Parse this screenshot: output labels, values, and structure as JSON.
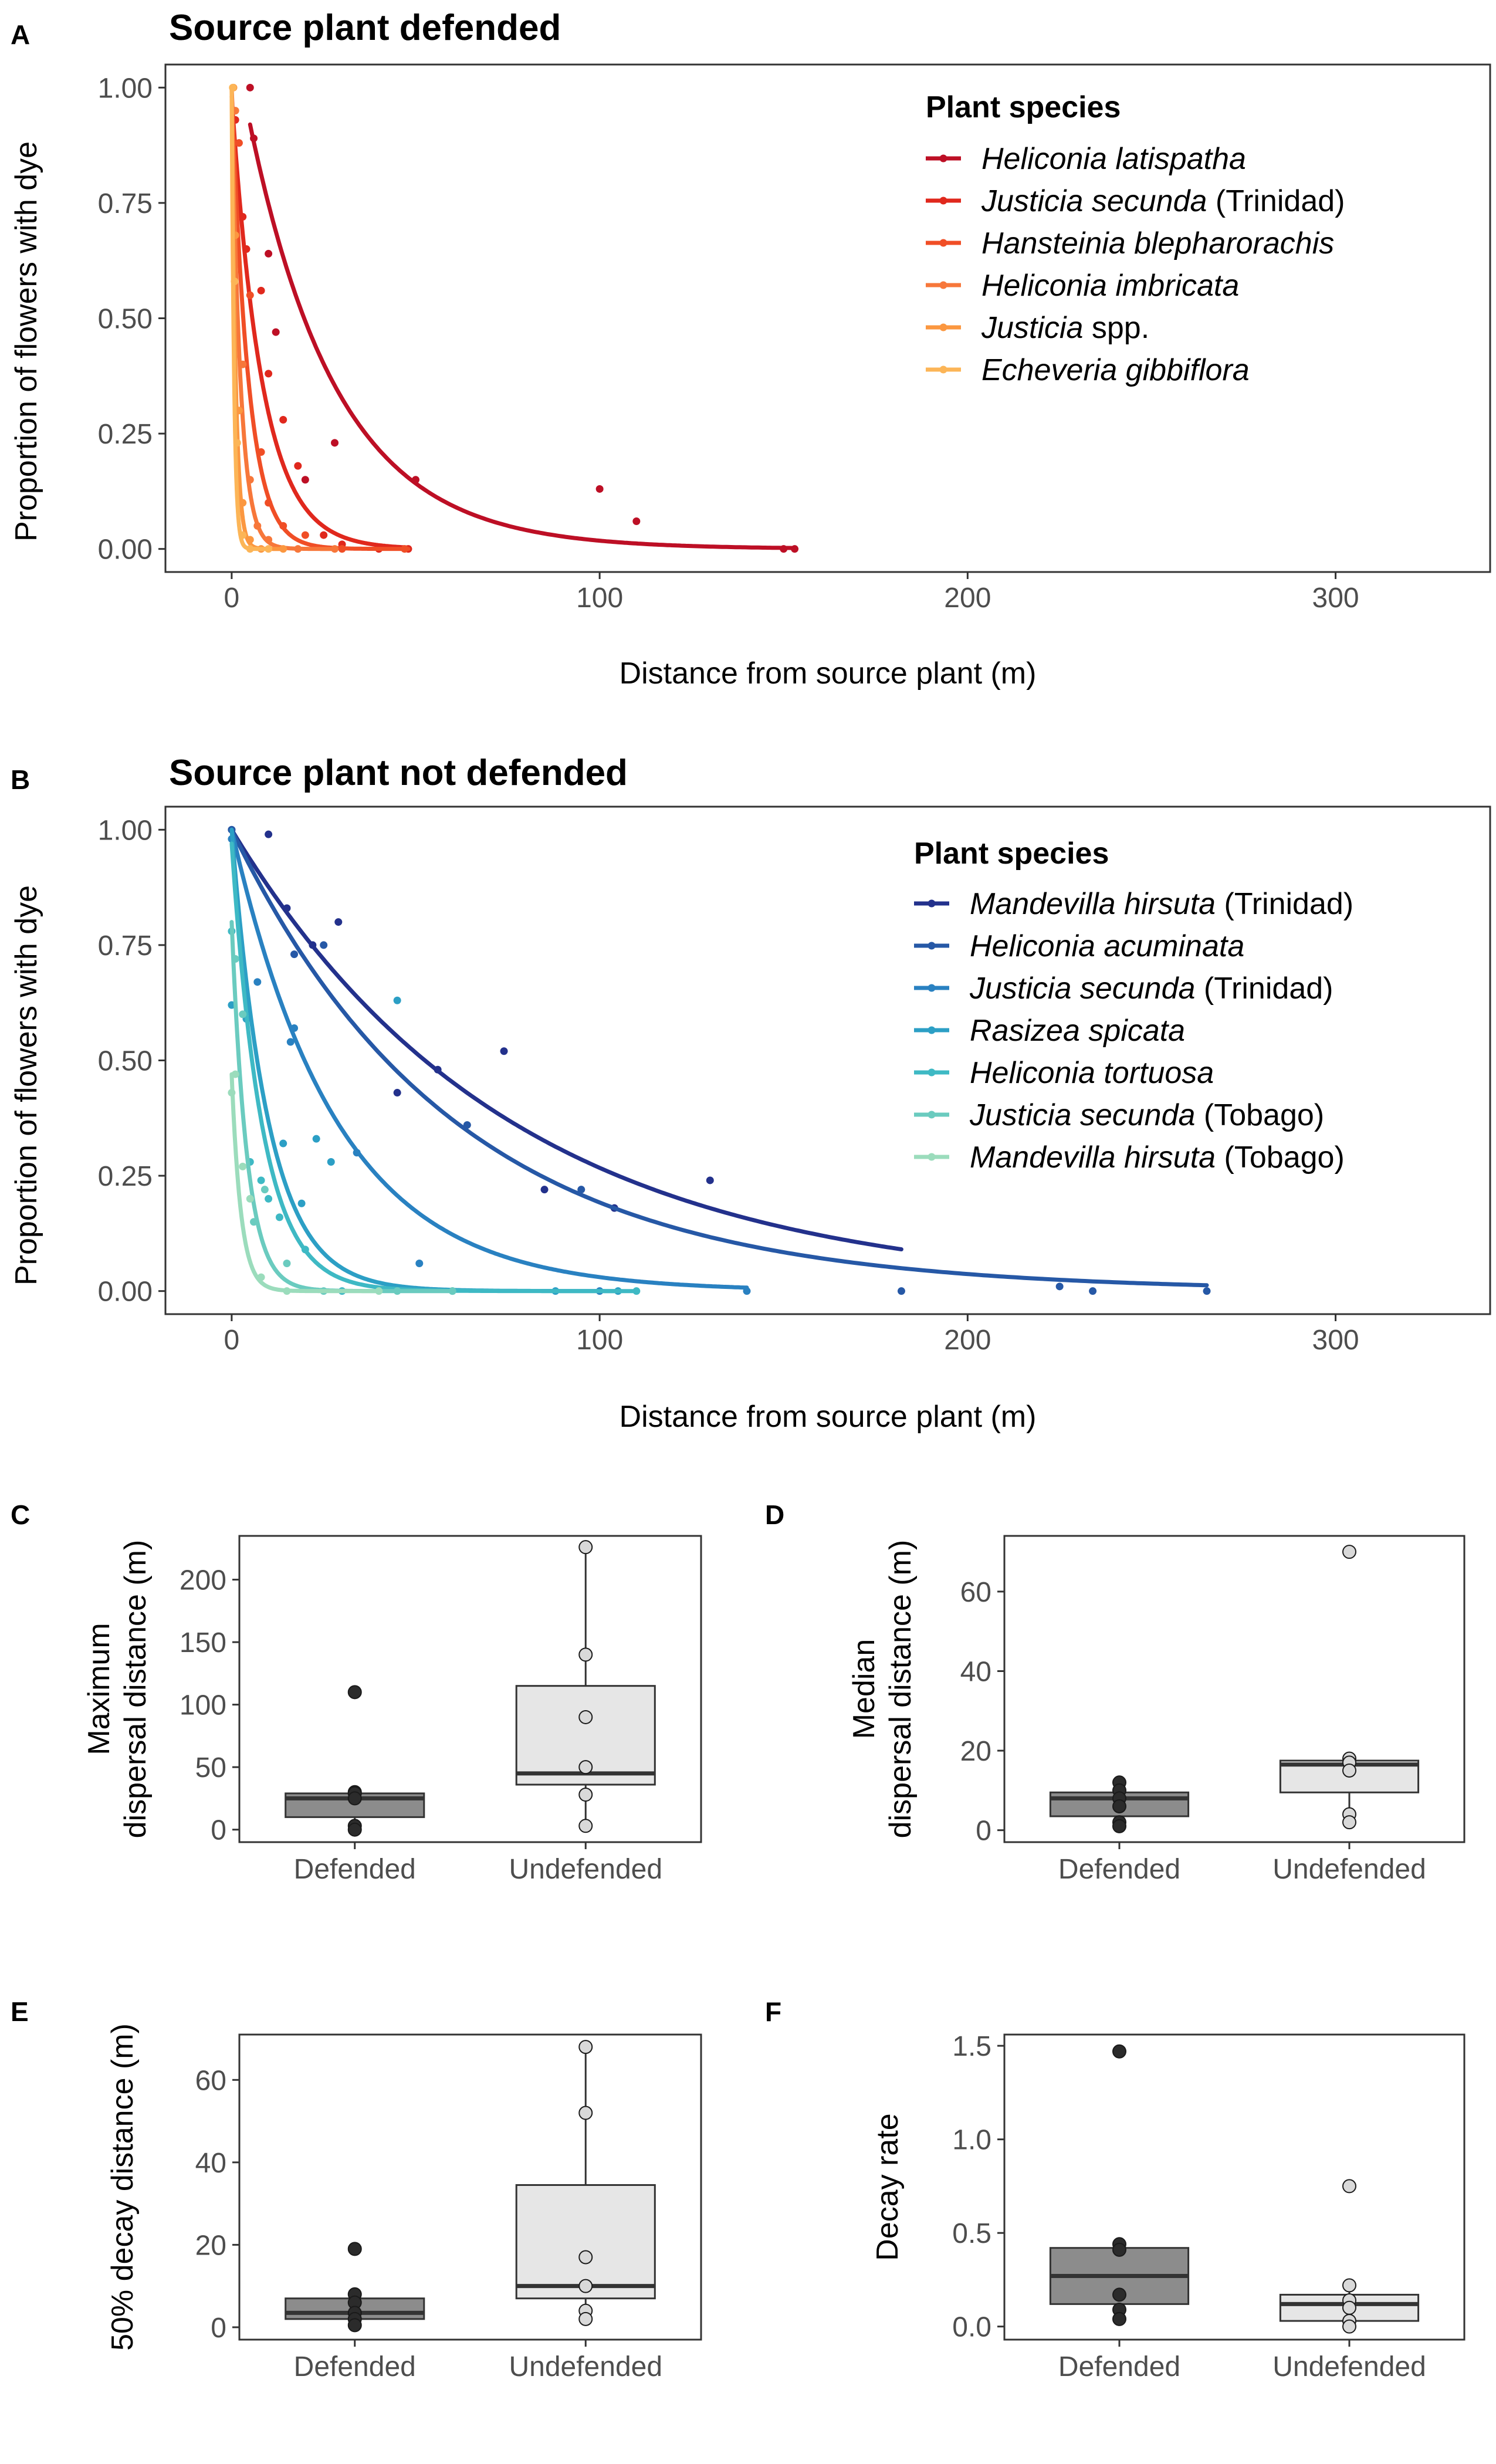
{
  "colors": {
    "defended_box": "#8c8c8c",
    "undefended_box": "#e6e6e6",
    "defended_point": "#2b2b2b",
    "undefended_point": "#d9d9d9"
  },
  "chart_data": [
    {
      "panel": "A",
      "type": "scatter",
      "title": "Source plant defended",
      "xlabel": "Distance from source plant (m)",
      "ylabel": "Proportion of flowers with dye",
      "xlim": [
        -18,
        342
      ],
      "ylim": [
        -0.05,
        1.05
      ],
      "xticks": [
        0,
        100,
        200,
        300
      ],
      "xtick_labels": [
        "0",
        "100",
        "200",
        "300"
      ],
      "yticks": [
        0,
        0.25,
        0.5,
        0.75,
        1.0
      ],
      "ytick_labels": [
        "0.00",
        "0.25",
        "0.50",
        "0.75",
        "1.00"
      ],
      "grid": false,
      "legend_position": "top-right",
      "legend_title": "Plant species",
      "series": [
        {
          "name_italic": "Heliconia latispatha",
          "name_plain": "",
          "color": "#bd0f25",
          "fit": {
            "a": 0.92,
            "k": 0.0415,
            "x0": 5,
            "x1": 153
          },
          "points": [
            [
              5,
              1.0
            ],
            [
              6,
              0.89
            ],
            [
              10,
              0.64
            ],
            [
              12,
              0.47
            ],
            [
              20,
              0.15
            ],
            [
              28,
              0.23
            ],
            [
              50,
              0.15
            ],
            [
              100,
              0.13
            ],
            [
              110,
              0.06
            ],
            [
              150,
              0.0
            ],
            [
              153,
              0.0
            ]
          ]
        },
        {
          "name_italic": "Justicia secunda",
          "name_plain": " (Trinidad)",
          "color": "#e0281d",
          "fit": {
            "a": 0.98,
            "k": 0.12,
            "x0": 0,
            "x1": 48
          },
          "points": [
            [
              1,
              0.93
            ],
            [
              3,
              0.72
            ],
            [
              4,
              0.65
            ],
            [
              8,
              0.56
            ],
            [
              10,
              0.38
            ],
            [
              14,
              0.28
            ],
            [
              18,
              0.18
            ],
            [
              25,
              0.03
            ],
            [
              30,
              0.01
            ],
            [
              40,
              0.0
            ],
            [
              48,
              0.0
            ]
          ]
        },
        {
          "name_italic": "Hansteinia blepharorachis",
          "name_plain": "",
          "color": "#f04e26",
          "fit": {
            "a": 1.0,
            "k": 0.22,
            "x0": 0,
            "x1": 48
          },
          "points": [
            [
              2,
              0.88
            ],
            [
              5,
              0.55
            ],
            [
              8,
              0.21
            ],
            [
              10,
              0.1
            ],
            [
              14,
              0.05
            ],
            [
              20,
              0.03
            ],
            [
              30,
              0.0
            ],
            [
              47,
              0.0
            ]
          ]
        },
        {
          "name_italic": "Heliconia imbricata",
          "name_plain": "",
          "color": "#f7773a",
          "fit": {
            "a": 1.0,
            "k": 0.42,
            "x0": 0,
            "x1": 28
          },
          "points": [
            [
              1,
              0.95
            ],
            [
              3,
              0.4
            ],
            [
              5,
              0.15
            ],
            [
              7,
              0.05
            ],
            [
              10,
              0.02
            ],
            [
              18,
              0.0
            ],
            [
              28,
              0.0
            ]
          ]
        },
        {
          "name_italic": "Justicia",
          "name_plain": " spp.",
          "color": "#fb9740",
          "fit": {
            "a": 1.0,
            "k": 0.9,
            "x0": 0,
            "x1": 14
          },
          "points": [
            [
              0.5,
              1.0
            ],
            [
              1,
              0.68
            ],
            [
              2,
              0.3
            ],
            [
              3,
              0.1
            ],
            [
              5,
              0.02
            ],
            [
              8,
              0.0
            ],
            [
              14,
              0.0
            ]
          ]
        },
        {
          "name_italic": "Echeveria gibbiflora",
          "name_plain": "",
          "color": "#fcb557",
          "fit": {
            "a": 1.0,
            "k": 1.48,
            "x0": 0,
            "x1": 10
          },
          "points": [
            [
              0.3,
              1.0
            ],
            [
              0.8,
              0.58
            ],
            [
              1.5,
              0.23
            ],
            [
              3,
              0.03
            ],
            [
              5,
              0.0
            ],
            [
              10,
              0.0
            ]
          ]
        }
      ]
    },
    {
      "panel": "B",
      "type": "scatter",
      "title": "Source plant not defended",
      "xlabel": "Distance from source plant (m)",
      "ylabel": "Proportion of flowers with dye",
      "xlim": [
        -18,
        342
      ],
      "ylim": [
        -0.05,
        1.05
      ],
      "xticks": [
        0,
        100,
        200,
        300
      ],
      "xtick_labels": [
        "0",
        "100",
        "200",
        "300"
      ],
      "yticks": [
        0,
        0.25,
        0.5,
        0.75,
        1.0
      ],
      "ytick_labels": [
        "0.00",
        "0.25",
        "0.50",
        "0.75",
        "1.00"
      ],
      "grid": false,
      "legend_position": "top-right",
      "legend_title": "Plant species",
      "series": [
        {
          "name_italic": "Mandevilla hirsuta",
          "name_plain": " (Trinidad)",
          "color": "#23318c",
          "fit": {
            "a": 1.0,
            "k": 0.0132,
            "x0": 0,
            "x1": 182
          },
          "points": [
            [
              0,
              1.0
            ],
            [
              10,
              0.99
            ],
            [
              15,
              0.83
            ],
            [
              22,
              0.75
            ],
            [
              29,
              0.8
            ],
            [
              45,
              0.43
            ],
            [
              56,
              0.48
            ],
            [
              74,
              0.52
            ],
            [
              85,
              0.22
            ],
            [
              104,
              0.18
            ],
            [
              130,
              0.24
            ]
          ]
        },
        {
          "name_italic": "Heliconia acuminata",
          "name_plain": "",
          "color": "#2658a6",
          "fit": {
            "a": 1.0,
            "k": 0.0165,
            "x0": 0,
            "x1": 265
          },
          "points": [
            [
              0,
              1.0
            ],
            [
              17,
              0.73
            ],
            [
              25,
              0.75
            ],
            [
              64,
              0.36
            ],
            [
              95,
              0.22
            ],
            [
              182,
              0.0
            ],
            [
              225,
              0.01
            ],
            [
              234,
              0.0
            ],
            [
              265,
              0.0
            ]
          ]
        },
        {
          "name_italic": "Justicia secunda",
          "name_plain": " (Trinidad)",
          "color": "#2981c1",
          "fit": {
            "a": 1.0,
            "k": 0.035,
            "x0": 0,
            "x1": 140
          },
          "points": [
            [
              0,
              0.98
            ],
            [
              7,
              0.67
            ],
            [
              16,
              0.54
            ],
            [
              17,
              0.57
            ],
            [
              34,
              0.3
            ],
            [
              51,
              0.06
            ],
            [
              100,
              0.0
            ],
            [
              140,
              0.0
            ]
          ]
        },
        {
          "name_italic": "Rasizea spicata",
          "name_plain": "",
          "color": "#2c9fc5",
          "fit": {
            "a": 1.0,
            "k": 0.1,
            "x0": 0,
            "x1": 105
          },
          "points": [
            [
              0,
              0.62
            ],
            [
              4,
              0.59
            ],
            [
              14,
              0.32
            ],
            [
              19,
              0.19
            ],
            [
              23,
              0.33
            ],
            [
              27,
              0.28
            ],
            [
              45,
              0.63
            ],
            [
              88,
              0.0
            ],
            [
              105,
              0.0
            ]
          ]
        },
        {
          "name_italic": "Heliconia tortuosa",
          "name_plain": "",
          "color": "#3eb9c4",
          "fit": {
            "a": 0.97,
            "k": 0.12,
            "x0": 0,
            "x1": 110
          },
          "points": [
            [
              0,
              0.78
            ],
            [
              5,
              0.28
            ],
            [
              8,
              0.24
            ],
            [
              10,
              0.2
            ],
            [
              13,
              0.16
            ],
            [
              20,
              0.09
            ],
            [
              30,
              0.0
            ],
            [
              60,
              0.0
            ],
            [
              110,
              0.0
            ]
          ]
        },
        {
          "name_italic": "Justicia secunda",
          "name_plain": " (Tobago)",
          "color": "#6acbbf",
          "fit": {
            "a": 0.8,
            "k": 0.24,
            "x0": 0,
            "x1": 60
          },
          "points": [
            [
              1,
              0.72
            ],
            [
              3,
              0.6
            ],
            [
              6,
              0.15
            ],
            [
              9,
              0.22
            ],
            [
              15,
              0.06
            ],
            [
              25,
              0.0
            ],
            [
              45,
              0.0
            ],
            [
              60,
              0.0
            ]
          ]
        },
        {
          "name_italic": "Mandevilla hirsuta",
          "name_plain": " (Tobago)",
          "color": "#9bdcbc",
          "fit": {
            "a": 0.47,
            "k": 0.4,
            "x0": 0,
            "x1": 40
          },
          "points": [
            [
              0,
              0.43
            ],
            [
              1,
              0.47
            ],
            [
              3,
              0.27
            ],
            [
              5,
              0.2
            ],
            [
              8,
              0.03
            ],
            [
              15,
              0.0
            ],
            [
              40,
              0.0
            ]
          ]
        }
      ]
    },
    {
      "panel": "C",
      "type": "box",
      "ylabel_lines": [
        "Maximum",
        "dispersal distance (m)"
      ],
      "categories": [
        "Defended",
        "Undefended"
      ],
      "ylim": [
        -10,
        235
      ],
      "yticks": [
        0,
        50,
        100,
        150,
        200
      ],
      "ytick_labels": [
        "0",
        "50",
        "100",
        "150",
        "200"
      ],
      "boxes": [
        {
          "q1": 10,
          "median": 25,
          "q3": 29,
          "lo": 0,
          "hi": 30,
          "points": [
            110,
            30,
            29,
            25,
            3,
            0
          ]
        },
        {
          "q1": 36,
          "median": 45,
          "q3": 115,
          "lo": 3,
          "hi": 226,
          "points": [
            226,
            140,
            90,
            50,
            28,
            3
          ]
        }
      ]
    },
    {
      "panel": "D",
      "type": "box",
      "ylabel_lines": [
        "Median",
        "dispersal distance (m)"
      ],
      "categories": [
        "Defended",
        "Undefended"
      ],
      "ylim": [
        -3,
        74
      ],
      "yticks": [
        0,
        20,
        40,
        60
      ],
      "ytick_labels": [
        "0",
        "20",
        "40",
        "60"
      ],
      "boxes": [
        {
          "q1": 3.5,
          "median": 8,
          "q3": 9.5,
          "lo": 1,
          "hi": 12,
          "points": [
            12,
            10,
            8,
            6,
            2,
            1
          ]
        },
        {
          "q1": 9.5,
          "median": 16.5,
          "q3": 17.5,
          "lo": 2,
          "hi": 18,
          "points": [
            70,
            18,
            17,
            15,
            4,
            2
          ]
        }
      ]
    },
    {
      "panel": "E",
      "type": "box",
      "ylabel_lines": [
        "50% decay distance (m)"
      ],
      "categories": [
        "Defended",
        "Undefended"
      ],
      "ylim": [
        -3,
        71
      ],
      "yticks": [
        0,
        20,
        40,
        60
      ],
      "ytick_labels": [
        "0",
        "20",
        "40",
        "60"
      ],
      "boxes": [
        {
          "q1": 2,
          "median": 3.5,
          "q3": 7,
          "lo": 0.5,
          "hi": 8,
          "points": [
            19,
            8,
            6,
            3.5,
            2,
            0.5
          ]
        },
        {
          "q1": 7,
          "median": 10,
          "q3": 34.5,
          "lo": 2,
          "hi": 68,
          "points": [
            68,
            52,
            17,
            10,
            4,
            2
          ]
        }
      ]
    },
    {
      "panel": "F",
      "type": "box",
      "ylabel_lines": [
        "Decay rate"
      ],
      "categories": [
        "Defended",
        "Undefended"
      ],
      "ylim": [
        -0.07,
        1.56
      ],
      "yticks": [
        0,
        0.5,
        1.0,
        1.5
      ],
      "ytick_labels": [
        "0.0",
        "0.5",
        "1.0",
        "1.5"
      ],
      "boxes": [
        {
          "q1": 0.12,
          "median": 0.27,
          "q3": 0.42,
          "lo": 0.04,
          "hi": 0.44,
          "points": [
            1.47,
            0.44,
            0.41,
            0.17,
            0.09,
            0.04
          ]
        },
        {
          "q1": 0.03,
          "median": 0.12,
          "q3": 0.17,
          "lo": 0.0,
          "hi": 0.22,
          "points": [
            0.75,
            0.22,
            0.14,
            0.1,
            0.03,
            0.0
          ]
        }
      ]
    }
  ]
}
